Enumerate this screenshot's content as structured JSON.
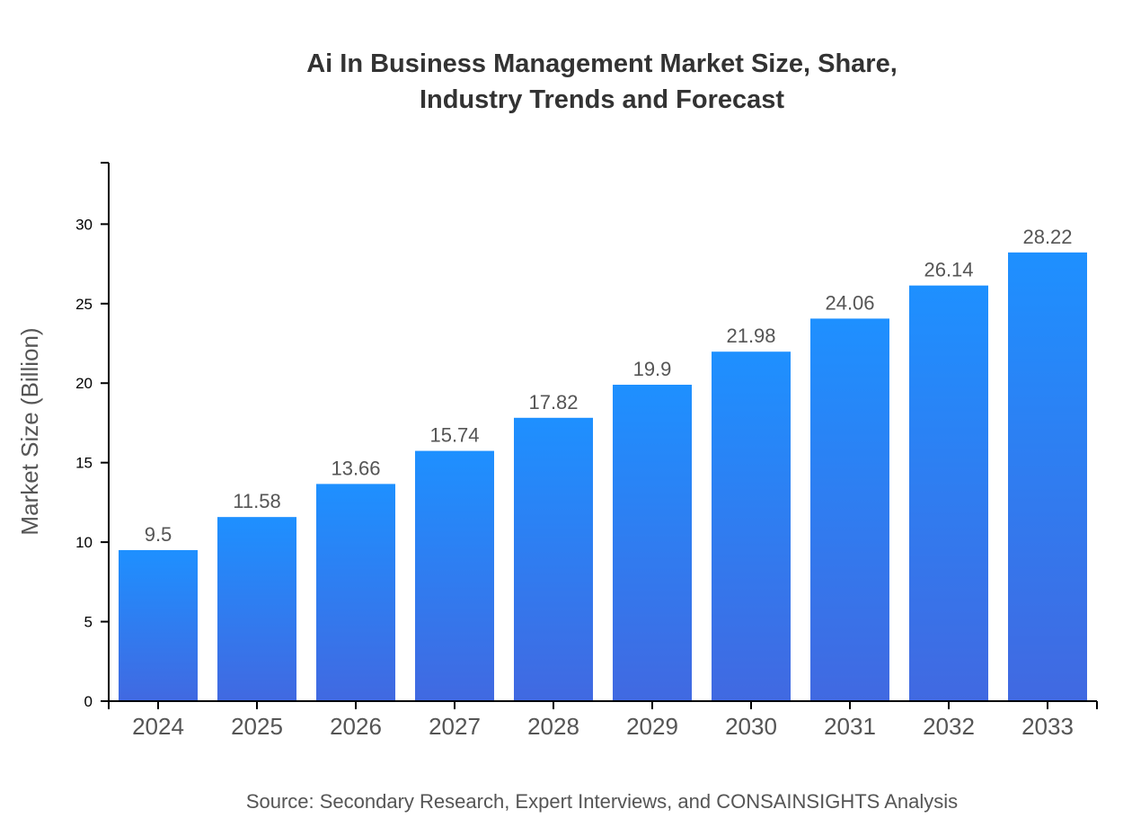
{
  "chart_data": {
    "type": "bar",
    "title": [
      "Ai In Business Management Market Size, Share,",
      "Industry Trends and Forecast"
    ],
    "categories": [
      "2024",
      "2025",
      "2026",
      "2027",
      "2028",
      "2029",
      "2030",
      "2031",
      "2032",
      "2033"
    ],
    "values": [
      9.5,
      11.58,
      13.66,
      15.74,
      17.82,
      19.9,
      21.98,
      24.06,
      26.14,
      28.22
    ],
    "xlabel": "",
    "ylabel": "Market Size (Billion)",
    "ylim": [
      0,
      33.864
    ],
    "yticks": [
      0,
      5,
      10,
      15,
      20,
      25,
      30
    ],
    "grid": false,
    "legend": "none",
    "data_labels": true,
    "colors": {
      "bar_top": "#1e90ff",
      "bar_bottom": "#4169e1"
    },
    "source": "Source: Secondary Research, Expert Interviews, and CONSAINSIGHTS Analysis"
  }
}
